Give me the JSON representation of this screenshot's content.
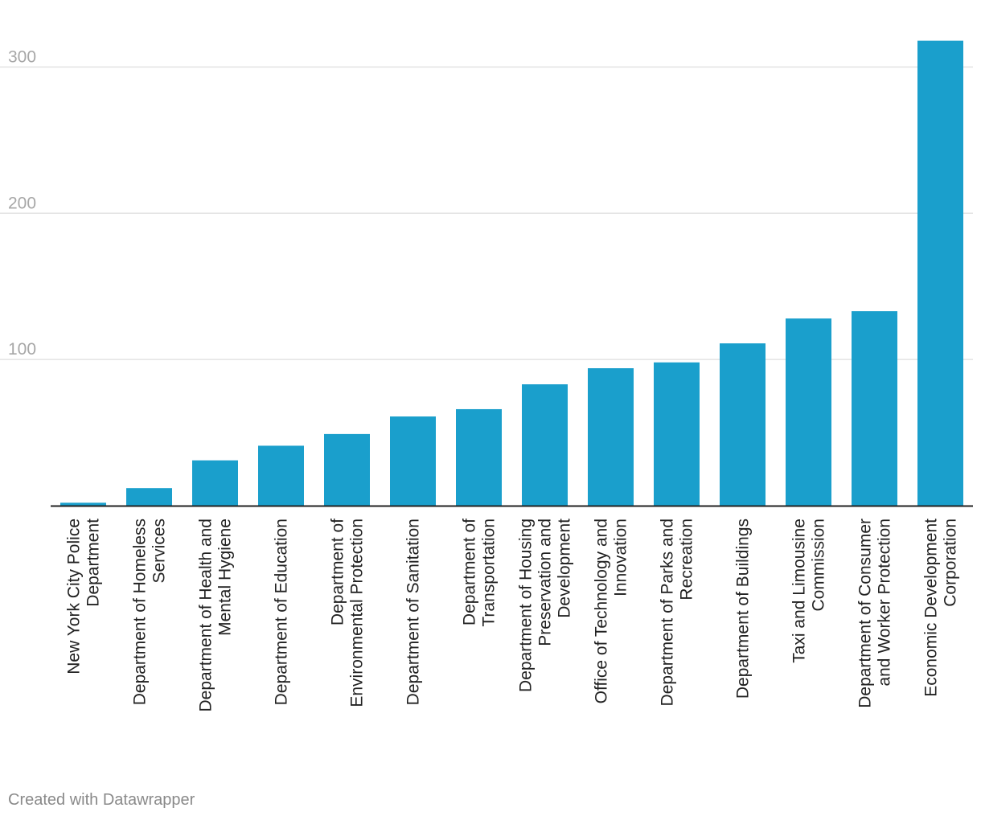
{
  "chart_data": {
    "type": "bar",
    "title": "",
    "xlabel": "",
    "ylabel": "",
    "ylim": [
      0,
      320
    ],
    "yticks": [
      100,
      200,
      300
    ],
    "grid": true,
    "bar_color": "#1a9fcc",
    "categories": [
      [
        "New York City Police",
        "Department"
      ],
      [
        "Department of Homeless",
        "Services"
      ],
      [
        "Department of Health and",
        "Mental Hygiene"
      ],
      [
        "Department of Education"
      ],
      [
        "Department of",
        "Environmental Protection"
      ],
      [
        "Department of Sanitation"
      ],
      [
        "Department of",
        "Transportation"
      ],
      [
        "Department of Housing",
        "Preservation and",
        "Development"
      ],
      [
        "Office of Technology and",
        "Innovation"
      ],
      [
        "Department of Parks and",
        "Recreation"
      ],
      [
        "Department of Buildings"
      ],
      [
        "Taxi and Limousine",
        "Commission"
      ],
      [
        "Department of Consumer",
        "and Worker Protection"
      ],
      [
        "Economic Development",
        "Corporation"
      ]
    ],
    "values": [
      2,
      12,
      31,
      41,
      49,
      61,
      66,
      83,
      94,
      98,
      111,
      128,
      133,
      318
    ]
  },
  "footer": {
    "credit": "Created with Datawrapper"
  }
}
